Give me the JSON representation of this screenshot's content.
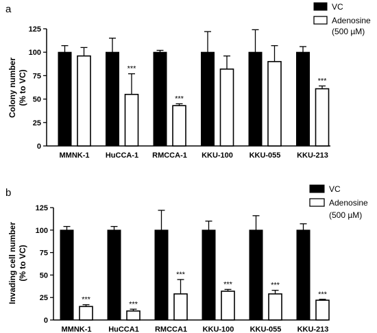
{
  "chart_data": [
    {
      "type": "bar",
      "panel": "a",
      "categories": [
        "MMNK-1",
        "HuCCA-1",
        "RMCCA-1",
        "KKU-100",
        "KKU-055",
        "KKU-213"
      ],
      "ylabel_line1": "Colony number",
      "ylabel_line2": "(% to VC)",
      "ylim": [
        0,
        125
      ],
      "yticks": [
        "0",
        "25",
        "50",
        "75",
        "100",
        "125"
      ],
      "series": [
        {
          "name": "VC",
          "color": "#000000",
          "values": [
            100,
            100,
            100,
            100,
            100,
            100
          ],
          "errors": [
            7,
            15,
            2,
            22,
            24,
            6
          ]
        },
        {
          "name": "Adenosine",
          "name_line2": "(500 µM)",
          "color": "#ffffff",
          "values": [
            96,
            55,
            43,
            82,
            90,
            61
          ],
          "errors": [
            9,
            22,
            2,
            14,
            17,
            3
          ]
        }
      ],
      "annotations": [
        "",
        "***",
        "***",
        "",
        "",
        "***"
      ],
      "legend": "top-right"
    },
    {
      "type": "bar",
      "panel": "b",
      "categories": [
        "MMNK-1",
        "HuCCA1",
        "RMCCA1",
        "KKU-100",
        "KKU-055",
        "KKU-213"
      ],
      "ylabel_line1": "Invading cell number",
      "ylabel_line2": "(% to VC)",
      "ylim": [
        0,
        125
      ],
      "yticks": [
        "0",
        "25",
        "50",
        "75",
        "100",
        "125"
      ],
      "series": [
        {
          "name": "VC",
          "color": "#000000",
          "values": [
            100,
            100,
            100,
            100,
            100,
            100
          ],
          "errors": [
            4,
            4,
            22,
            10,
            16,
            7
          ]
        },
        {
          "name": "Adenosine",
          "name_line2": "(500 µM)",
          "color": "#ffffff",
          "values": [
            15,
            10,
            29,
            32,
            29,
            22
          ],
          "errors": [
            2,
            2,
            16,
            2,
            4,
            1
          ]
        }
      ],
      "annotations": [
        "***",
        "***",
        "***",
        "***",
        "***",
        "***"
      ],
      "legend": "top-right"
    }
  ]
}
